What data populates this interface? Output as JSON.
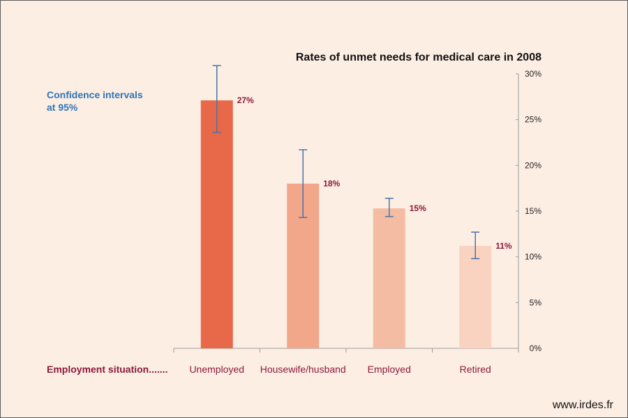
{
  "chart_data": {
    "type": "bar",
    "title": "Rates of unmet needs for medical care in 2008",
    "ci_note": [
      "Confidence intervals",
      "at 95%"
    ],
    "xlabel": "Employment situation.......",
    "ylabel": "",
    "categories": [
      "Unemployed",
      "Housewife/husband",
      "Employed",
      "Retired"
    ],
    "values": [
      27.1,
      18.0,
      15.3,
      11.2
    ],
    "data_labels": [
      "27%",
      "18%",
      "15%",
      "11%"
    ],
    "ci_low": [
      23.6,
      14.3,
      14.4,
      9.8
    ],
    "ci_high": [
      30.9,
      21.7,
      16.4,
      12.7
    ],
    "ylim": [
      0,
      30
    ],
    "yticks": [
      0,
      5,
      10,
      15,
      20,
      25,
      30
    ],
    "ytick_labels": [
      "0%",
      "5%",
      "10%",
      "15%",
      "20%",
      "25%",
      "30%"
    ],
    "y_axis_side": "right",
    "grid": false,
    "legend": "none",
    "bar_colors": [
      "#e8684a",
      "#f2a68a",
      "#f5bca4",
      "#f9d2c0"
    ],
    "errorbar_color": "#4a73a8"
  },
  "footer": {
    "source": "www.irdes.fr"
  },
  "colors": {
    "background": "#fdeee4",
    "label_red": "#8b1a3a",
    "note_blue": "#2e75b6",
    "axis": "#9a9a9a"
  }
}
